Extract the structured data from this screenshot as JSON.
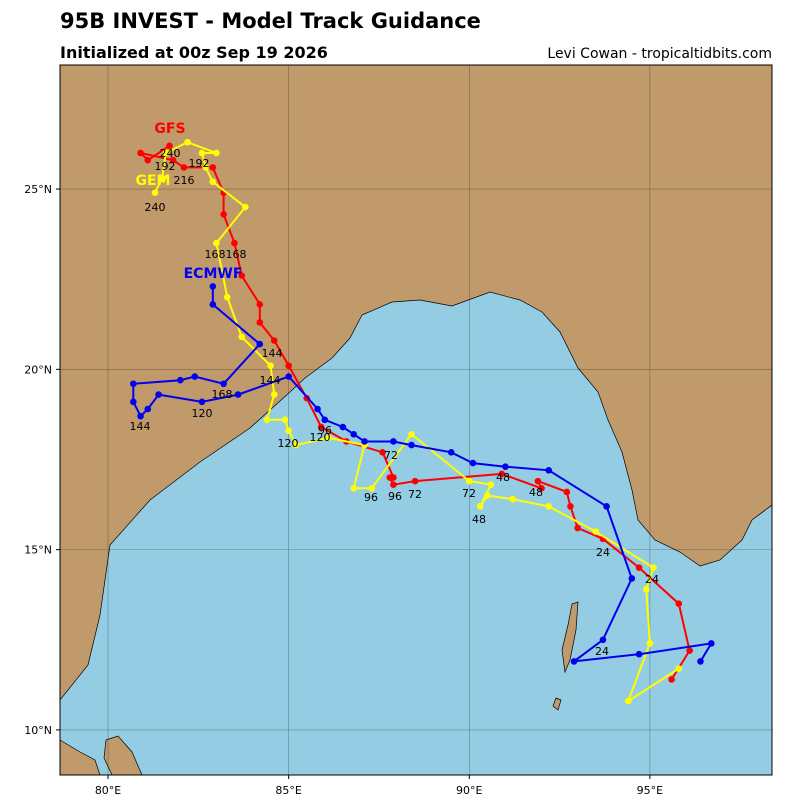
{
  "chart_data": {
    "type": "track-map",
    "title": "95B INVEST - Model Track Guidance",
    "subtitle": "Initialized at 00z Sep 19 2026",
    "credit": "Levi Cowan - tropicaltidbits.com",
    "xlim": [
      78.67,
      98.38
    ],
    "ylim": [
      8.75,
      28.44
    ],
    "xticks": [
      {
        "value": 80,
        "label": "80°E"
      },
      {
        "value": 85,
        "label": "85°E"
      },
      {
        "value": 90,
        "label": "90°E"
      },
      {
        "value": 95,
        "label": "95°E"
      }
    ],
    "yticks": [
      {
        "value": 10,
        "label": "10°N"
      },
      {
        "value": 15,
        "label": "15°N"
      },
      {
        "value": 20,
        "label": "20°N"
      },
      {
        "value": 25,
        "label": "25°N"
      }
    ],
    "grid": true,
    "series": [
      {
        "name": "GFS",
        "color": "#ff0000",
        "lon": [
          95.6,
          96.1,
          95.8,
          94.7,
          93.7,
          93.0,
          92.8,
          92.7,
          91.9,
          92.0,
          90.9,
          88.5,
          87.9,
          87.8,
          87.9,
          87.6,
          86.6,
          85.9,
          85.5,
          85.0,
          84.6,
          84.2,
          84.2,
          83.7,
          83.5,
          83.2,
          83.2,
          82.9,
          82.1,
          81.8,
          80.9,
          81.1,
          81.7
        ],
        "lat": [
          11.4,
          12.2,
          13.5,
          14.5,
          15.3,
          15.6,
          16.2,
          16.6,
          16.9,
          16.7,
          17.1,
          16.9,
          16.8,
          17.0,
          17.0,
          17.7,
          18.0,
          18.4,
          19.2,
          20.1,
          20.8,
          21.3,
          21.8,
          22.6,
          23.5,
          24.3,
          24.9,
          25.6,
          25.6,
          25.8,
          26.0,
          25.8,
          26.2
        ]
      },
      {
        "name": "GEM",
        "color": "#ffff00",
        "lon": [
          95.8,
          94.4,
          95.0,
          94.9,
          95.1,
          93.5,
          92.2,
          91.2,
          90.5,
          90.3,
          90.6,
          90.0,
          88.4,
          87.3,
          86.8,
          87.1,
          86.1,
          85.2,
          85.0,
          84.9,
          84.4,
          84.6,
          84.5,
          83.7,
          83.3,
          83.0,
          83.8,
          82.9,
          82.7,
          82.6,
          83.0,
          82.2,
          81.6,
          81.5,
          81.3
        ],
        "lat": [
          11.7,
          10.8,
          12.4,
          13.9,
          14.5,
          15.5,
          16.2,
          16.4,
          16.5,
          16.2,
          16.8,
          16.9,
          18.2,
          16.7,
          16.7,
          17.9,
          18.1,
          17.9,
          18.3,
          18.6,
          18.6,
          19.3,
          20.1,
          20.9,
          22.0,
          23.5,
          24.5,
          25.2,
          25.6,
          26.0,
          26.0,
          26.3,
          26.0,
          25.3,
          24.9
        ]
      },
      {
        "name": "ECMWF",
        "color": "#0000ee",
        "lon": [
          96.4,
          96.7,
          94.7,
          92.9,
          93.7,
          94.5,
          93.8,
          92.2,
          91.0,
          90.1,
          89.5,
          88.4,
          87.9,
          87.1,
          86.8,
          86.5,
          86.0,
          85.8,
          85.0,
          83.6,
          82.6,
          81.4,
          81.1,
          80.9,
          80.7,
          80.7,
          82.0,
          82.4,
          83.2,
          84.2,
          82.9,
          82.9
        ],
        "lat": [
          11.9,
          12.4,
          12.1,
          11.9,
          12.5,
          14.2,
          16.2,
          17.2,
          17.3,
          17.4,
          17.7,
          17.9,
          18.0,
          18.0,
          18.2,
          18.4,
          18.6,
          18.9,
          19.8,
          19.3,
          19.1,
          19.3,
          18.9,
          18.7,
          19.1,
          19.6,
          19.7,
          19.8,
          19.6,
          20.7,
          21.8,
          22.3
        ]
      }
    ],
    "hour_labels": [
      "240",
      "192",
      "192",
      "216",
      "240",
      "168",
      "168",
      "144",
      "144",
      "168",
      "120",
      "144",
      "96",
      "120",
      "120",
      "72",
      "96",
      "96",
      "72",
      "72",
      "48",
      "48",
      "48",
      "24",
      "24",
      "24"
    ]
  }
}
